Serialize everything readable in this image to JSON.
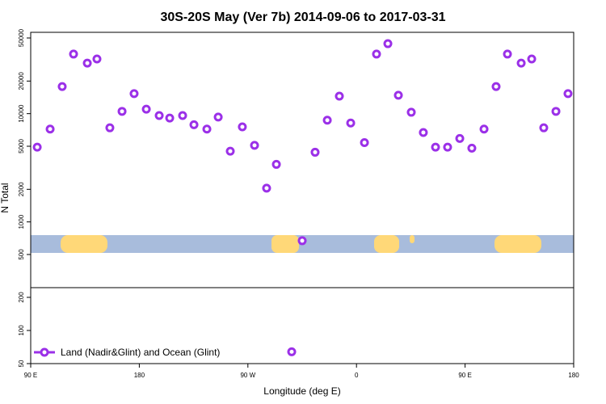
{
  "chart_data": [
    {
      "type": "scatter",
      "title": "30S-20S May (Ver 7b)   2014-09-06 to 2017-03-31",
      "y_label": "N Total",
      "log_y": true,
      "ylim": [
        247,
        56400
      ],
      "yticks": [
        500,
        1000,
        2000,
        5000,
        10000,
        20000,
        50000
      ],
      "xlim": [
        90,
        540
      ],
      "series": [
        {
          "color": "#9b30e8",
          "x": [
            95.4,
            106.1,
            116.1,
            125.5,
            136.9,
            144.9,
            155.6,
            165.7,
            175.7,
            185.8,
            196.5,
            205.2,
            215.9,
            225.3,
            236,
            245.4,
            255.4,
            265.4,
            275.5,
            285.5,
            293.6,
            315,
            325.7,
            335.8,
            345.8,
            355.2,
            366.6,
            376.6,
            386,
            394.7,
            405.4,
            415.4,
            425.5,
            435.5,
            445.6,
            455.6,
            465.7,
            475.7,
            485.1,
            496.5,
            505.2,
            515.2,
            525.3,
            535.3
          ],
          "values": [
            4900,
            7200,
            17800,
            35500,
            29300,
            32000,
            7400,
            10500,
            15300,
            11000,
            9600,
            9100,
            9600,
            7900,
            7200,
            9300,
            4500,
            7550,
            5100,
            2050,
            3400,
            670,
            4400,
            8700,
            14500,
            8200,
            5400,
            35500,
            44300,
            14800,
            10300,
            6700,
            4900,
            4900,
            5900,
            4800,
            7200,
            17800,
            35500,
            29300,
            32000,
            7400,
            10500,
            15300
          ]
        }
      ]
    },
    {
      "type": "scatter",
      "x_label": "Longitude (deg E)",
      "log_y": true,
      "legend": "lower left",
      "ylim": [
        50,
        245
      ],
      "yticks": [
        50,
        100,
        200
      ],
      "xlim": [
        90,
        540
      ],
      "xticks": [
        {
          "value": 90,
          "label": "90 E"
        },
        {
          "value": 180,
          "label": "180"
        },
        {
          "value": 270,
          "label": "90 W"
        },
        {
          "value": 360,
          "label": "0"
        },
        {
          "value": 450,
          "label": "90 E"
        },
        {
          "value": 540,
          "label": "180"
        }
      ],
      "series": [
        {
          "name": "Land (Nadir&Glint) and Ocean (Glint)",
          "color": "#9b30e8",
          "x": [
            306.3
          ],
          "values": [
            64
          ]
        }
      ]
    }
  ]
}
